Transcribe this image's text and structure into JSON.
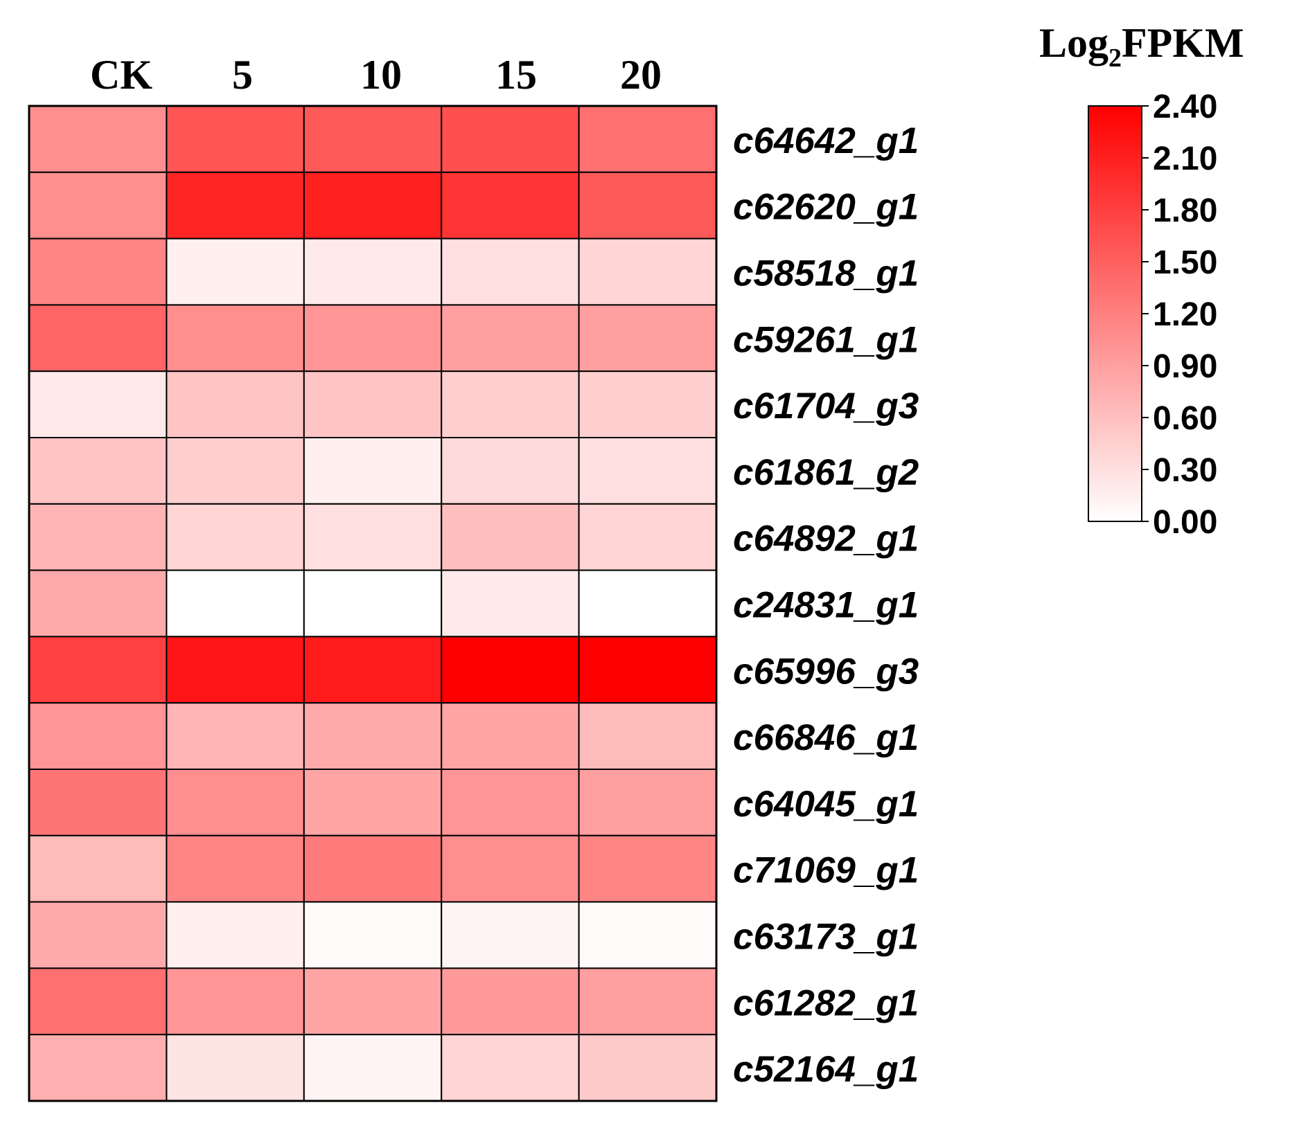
{
  "chart_data": {
    "type": "heatmap",
    "title": "",
    "colorbar_title": {
      "base": "Log",
      "subscript": "2",
      "rest": "FPKM"
    },
    "columns": [
      "CK",
      "5",
      "10",
      "15",
      "20"
    ],
    "rows": [
      "c64642_g1",
      "c62620_g1",
      "c58518_g1",
      "c59261_g1",
      "c61704_g3",
      "c61861_g2",
      "c64892_g1",
      "c24831_g1",
      "c65996_g3",
      "c66846_g1",
      "c64045_g1",
      "c71069_g1",
      "c63173_g1",
      "c61282_g1",
      "c52164_g1"
    ],
    "values": [
      [
        1.05,
        1.6,
        1.55,
        1.65,
        1.35
      ],
      [
        1.05,
        2.05,
        2.1,
        1.9,
        1.55
      ],
      [
        1.15,
        0.15,
        0.2,
        0.3,
        0.4
      ],
      [
        1.45,
        1.05,
        1.0,
        0.9,
        0.9
      ],
      [
        0.2,
        0.55,
        0.55,
        0.45,
        0.45
      ],
      [
        0.55,
        0.45,
        0.15,
        0.35,
        0.3
      ],
      [
        0.7,
        0.4,
        0.3,
        0.6,
        0.4
      ],
      [
        0.8,
        0.0,
        0.0,
        0.2,
        0.0
      ],
      [
        1.8,
        2.2,
        2.15,
        2.4,
        2.4
      ],
      [
        1.0,
        0.7,
        0.8,
        0.85,
        0.65
      ],
      [
        1.3,
        1.05,
        0.85,
        1.0,
        0.9
      ],
      [
        0.65,
        1.15,
        1.25,
        1.05,
        1.15
      ],
      [
        0.8,
        0.15,
        0.05,
        0.1,
        0.05
      ],
      [
        1.35,
        1.0,
        0.85,
        0.95,
        0.9
      ],
      [
        0.75,
        0.25,
        0.1,
        0.4,
        0.5
      ]
    ],
    "colorbar": {
      "min": 0.0,
      "max": 2.4,
      "ticks": [
        "2.40",
        "2.10",
        "1.80",
        "1.50",
        "1.20",
        "0.90",
        "0.60",
        "0.30",
        "0.00"
      ],
      "low_color": "#ffffff",
      "high_color": "#ff0000"
    }
  }
}
